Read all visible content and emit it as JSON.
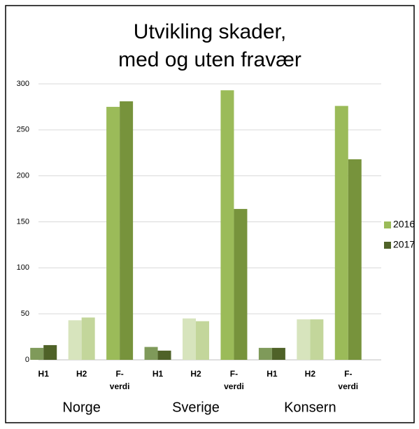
{
  "chart_data": {
    "type": "bar",
    "title": [
      "Utvikling skader,",
      "med og uten fravær"
    ],
    "groups": [
      {
        "name": "Norge",
        "categories": [
          "H1",
          "H2",
          "F-verdi"
        ]
      },
      {
        "name": "Sverige",
        "categories": [
          "H1",
          "H2",
          "F-verdi"
        ]
      },
      {
        "name": "Konsern",
        "categories": [
          "H1",
          "H2",
          "F-verdi"
        ]
      }
    ],
    "series": [
      {
        "name": "2016",
        "color": "#9bbb59",
        "category_colors": [
          "#7f9a5a",
          "#d7e4bd",
          "#9bbb59"
        ],
        "values": [
          13,
          43,
          275,
          14,
          45,
          293,
          13,
          44,
          276
        ]
      },
      {
        "name": "2017",
        "color": "#4f6228",
        "category_colors": [
          "#4f6228",
          "#c3d69b",
          "#77933c"
        ],
        "values": [
          16,
          46,
          281,
          10,
          42,
          164,
          13,
          44,
          218
        ]
      }
    ],
    "ylim": [
      0,
      300
    ],
    "yticks": [
      0,
      50,
      100,
      150,
      200,
      250,
      300
    ],
    "grid": true,
    "legend": "right"
  }
}
